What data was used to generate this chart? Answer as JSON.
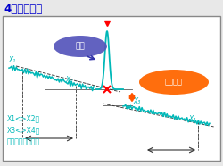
{
  "title": "4点マーカ法",
  "bg_color": "#e8e8e8",
  "box_bg": "#ffffff",
  "border_color": "#888888",
  "line_color": "#00b8b8",
  "reflection_bubble_color": "#5555bb",
  "loss_bubble_color": "#ff6600",
  "label_reflection": "反射",
  "label_loss": "接続損失",
  "note_text": "X1<>X2、\nX3<>X4は\nできるだけ離す。",
  "title_fontsize": 8.5,
  "note_fontsize": 5.5,
  "label_fontsize": 5.0
}
